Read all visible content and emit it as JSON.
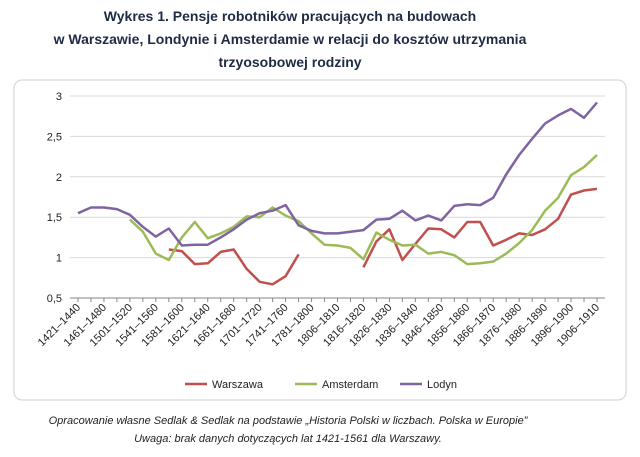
{
  "chart_data": {
    "type": "line",
    "title": [
      "Wykres 1. Pensje robotników pracujących na budowach",
      "w Warszawie, Londynie i Amsterdamie w relacji do kosztów utrzymania",
      "trzyosobowej rodziny"
    ],
    "notes": [
      "Opracowanie własne Sedlak & Sedlak na podstawie „Historia Polski w liczbach. Polska w Europie”",
      "Uwaga: brak danych dotyczących lat 1421-1561 dla Warszawy."
    ],
    "categories": [
      "1421–1440",
      null,
      "1461–1480",
      null,
      "1501–1520",
      null,
      "1541–1560",
      null,
      "1581–1600",
      null,
      "1621–1640",
      null,
      "1661–1680",
      null,
      "1701–1720",
      null,
      "1741–1760",
      null,
      "1781–1800",
      null,
      "1806–1810",
      null,
      "1816–1820",
      null,
      "1826–1830",
      null,
      "1836–1840",
      null,
      "1846–1850",
      null,
      "1856–1860",
      null,
      "1866–1870",
      null,
      "1876–1880",
      null,
      "1886–1890",
      null,
      "1896–1900",
      null,
      "1906–1910"
    ],
    "series": [
      {
        "name": "Warszawa",
        "color": "#c0504d",
        "values": [
          null,
          null,
          null,
          null,
          null,
          null,
          null,
          1.1,
          1.08,
          0.92,
          0.93,
          1.07,
          1.1,
          0.86,
          0.7,
          0.67,
          0.77,
          1.04,
          null,
          null,
          null,
          null,
          0.88,
          1.2,
          1.35,
          0.97,
          1.17,
          1.36,
          1.35,
          1.25,
          1.44,
          1.44,
          1.15,
          1.22,
          1.3,
          1.28,
          1.35,
          1.48,
          1.78,
          1.83,
          1.85
        ]
      },
      {
        "name": "Amsterdam",
        "color": "#9bbb59",
        "values": [
          null,
          null,
          null,
          null,
          1.47,
          1.32,
          1.05,
          0.97,
          1.25,
          1.44,
          1.24,
          1.3,
          1.38,
          1.51,
          1.5,
          1.62,
          1.52,
          1.45,
          1.3,
          1.16,
          1.15,
          1.12,
          0.98,
          1.31,
          1.22,
          1.15,
          1.16,
          1.05,
          1.07,
          1.03,
          0.92,
          0.93,
          0.95,
          1.05,
          1.18,
          1.34,
          1.58,
          1.74,
          2.02,
          2.12,
          2.27
        ]
      },
      {
        "name": "Lodyn",
        "color": "#8064a2",
        "values": [
          1.55,
          1.62,
          1.62,
          1.6,
          1.53,
          1.38,
          1.26,
          1.36,
          1.15,
          1.16,
          1.16,
          1.25,
          1.35,
          1.47,
          1.55,
          1.58,
          1.65,
          1.4,
          1.33,
          1.3,
          1.3,
          1.32,
          1.34,
          1.47,
          1.48,
          1.58,
          1.46,
          1.52,
          1.46,
          1.64,
          1.66,
          1.65,
          1.74,
          2.03,
          2.27,
          2.47,
          2.66,
          2.76,
          2.84,
          2.73,
          2.92
        ]
      }
    ],
    "ylim": [
      0.5,
      3
    ],
    "yticks": [
      {
        "value": 0.5,
        "label": "0,5"
      },
      1,
      {
        "value": 1.5,
        "label": "1,5"
      },
      2,
      {
        "value": 2.5,
        "label": "2,5"
      },
      3
    ],
    "grid": true,
    "legend": "bottom"
  }
}
